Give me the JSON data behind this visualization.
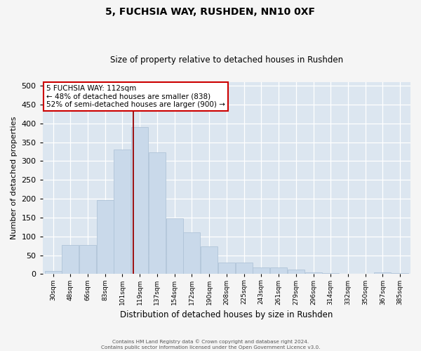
{
  "title": "5, FUCHSIA WAY, RUSHDEN, NN10 0XF",
  "subtitle": "Size of property relative to detached houses in Rushden",
  "xlabel": "Distribution of detached houses by size in Rushden",
  "ylabel": "Number of detached properties",
  "bar_color": "#c9d9ea",
  "bar_edge_color": "#b0c4d8",
  "background_color": "#dce6f0",
  "grid_color": "#ffffff",
  "vline_value": 5,
  "vline_color": "#990000",
  "annotation_text": "5 FUCHSIA WAY: 112sqm\n← 48% of detached houses are smaller (838)\n52% of semi-detached houses are larger (900) →",
  "annotation_box_facecolor": "#ffffff",
  "annotation_box_edgecolor": "#cc0000",
  "footer_text": "Contains HM Land Registry data © Crown copyright and database right 2024.\nContains public sector information licensed under the Open Government Licence v3.0.",
  "categories": [
    "30sqm",
    "48sqm",
    "66sqm",
    "83sqm",
    "101sqm",
    "119sqm",
    "137sqm",
    "154sqm",
    "172sqm",
    "190sqm",
    "208sqm",
    "225sqm",
    "243sqm",
    "261sqm",
    "279sqm",
    "296sqm",
    "314sqm",
    "332sqm",
    "350sqm",
    "367sqm",
    "385sqm"
  ],
  "bar_heights": [
    8,
    78,
    78,
    197,
    330,
    390,
    323,
    148,
    110,
    73,
    30,
    30,
    17,
    18,
    11,
    5,
    2,
    1,
    0,
    4,
    3
  ],
  "ylim": [
    0,
    510
  ],
  "yticks": [
    0,
    50,
    100,
    150,
    200,
    250,
    300,
    350,
    400,
    450,
    500
  ],
  "fig_facecolor": "#f5f5f5",
  "title_fontsize": 10,
  "subtitle_fontsize": 8.5
}
